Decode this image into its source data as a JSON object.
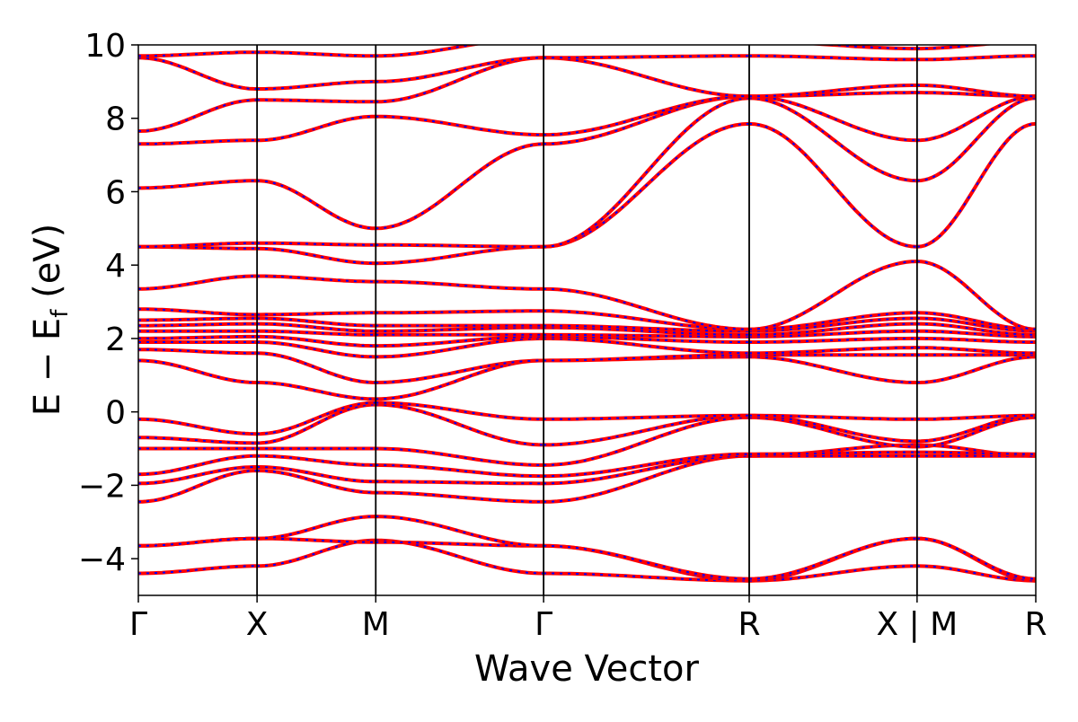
{
  "chart_data": {
    "type": "line",
    "xlabel": "Wave Vector",
    "ylabel_main": "E − E",
    "ylabel_sub": "f",
    "ylabel_unit": " (eV)",
    "ylim": [
      -5,
      10
    ],
    "y_ticks": [
      -4,
      -2,
      0,
      2,
      4,
      6,
      8,
      10
    ],
    "y_tick_labels": [
      "−4",
      "−2",
      "0",
      "2",
      "4",
      "6",
      "8",
      "10"
    ],
    "k_points": [
      {
        "label": "Γ",
        "pos": 0.0
      },
      {
        "label": "X",
        "pos": 0.5
      },
      {
        "label": "M",
        "pos": 1.0
      },
      {
        "label": "Γ",
        "pos": 1.707
      },
      {
        "label": "R",
        "pos": 2.573
      },
      {
        "label": "X | M",
        "pos": 3.28
      },
      {
        "label": "R",
        "pos": 3.78
      }
    ],
    "segment_break_after": 5,
    "grid": false,
    "series_colors": {
      "spin_up": "#ff0000",
      "spin_down": "#0000ff"
    },
    "bands": [
      {
        "energies": [
          -4.4,
          -4.2,
          -3.5,
          -4.4,
          -4.6,
          -4.2,
          -4.6
        ]
      },
      {
        "energies": [
          -3.65,
          -3.45,
          -3.55,
          -3.65,
          -4.6,
          -3.45,
          -4.6
        ]
      },
      {
        "energies": [
          -3.65,
          -3.45,
          -2.85,
          -3.65,
          -4.55,
          -3.45,
          -4.55
        ]
      },
      {
        "energies": [
          -2.45,
          -1.6,
          -2.2,
          -2.45,
          -1.2,
          -1.2,
          -1.2
        ]
      },
      {
        "energies": [
          -1.95,
          -1.5,
          -1.9,
          -1.95,
          -1.2,
          -0.9,
          -1.2
        ]
      },
      {
        "energies": [
          -1.7,
          -1.2,
          -1.45,
          -1.75,
          -1.15,
          -1.1,
          -1.15
        ]
      },
      {
        "energies": [
          -1.0,
          -1.0,
          -1.0,
          -1.45,
          -0.15,
          -0.95,
          -0.15
        ]
      },
      {
        "energies": [
          -0.7,
          -0.85,
          0.2,
          -0.9,
          -0.1,
          -0.8,
          -0.1
        ]
      },
      {
        "energies": [
          -0.2,
          -0.6,
          0.25,
          -0.2,
          -0.1,
          -0.2,
          -0.1
        ]
      },
      {
        "energies": [
          1.4,
          0.8,
          0.35,
          1.4,
          1.5,
          0.8,
          1.5
        ]
      },
      {
        "energies": [
          1.7,
          1.6,
          0.8,
          1.4,
          1.55,
          1.55,
          1.55
        ]
      },
      {
        "energies": [
          1.9,
          1.9,
          1.5,
          2.0,
          1.6,
          1.75,
          1.6
        ]
      },
      {
        "energies": [
          2.0,
          2.05,
          1.8,
          2.05,
          1.9,
          2.0,
          1.9
        ]
      },
      {
        "energies": [
          2.2,
          2.2,
          2.1,
          2.1,
          2.05,
          2.2,
          2.05
        ]
      },
      {
        "energies": [
          2.35,
          2.4,
          2.2,
          2.3,
          2.1,
          2.4,
          2.1
        ]
      },
      {
        "energies": [
          2.5,
          2.55,
          2.35,
          2.35,
          2.2,
          2.55,
          2.2
        ]
      },
      {
        "energies": [
          2.8,
          2.65,
          2.7,
          2.75,
          2.25,
          2.7,
          2.25
        ]
      },
      {
        "energies": [
          3.35,
          3.7,
          3.55,
          3.35,
          2.25,
          4.1,
          2.25
        ]
      },
      {
        "energies": [
          4.5,
          4.45,
          4.05,
          4.5,
          7.85,
          4.5,
          7.85
        ]
      },
      {
        "energies": [
          4.5,
          4.6,
          4.55,
          4.5,
          8.55,
          6.3,
          8.55
        ]
      },
      {
        "energies": [
          6.1,
          6.3,
          5.0,
          7.3,
          8.6,
          7.4,
          8.6
        ]
      },
      {
        "energies": [
          7.3,
          7.4,
          8.05,
          7.55,
          8.6,
          8.7,
          8.6
        ]
      },
      {
        "energies": [
          7.65,
          8.5,
          8.45,
          9.65,
          8.6,
          8.9,
          8.6
        ]
      },
      {
        "energies": [
          9.65,
          8.8,
          9.0,
          9.65,
          9.7,
          9.6,
          9.7
        ]
      },
      {
        "energies": [
          9.7,
          9.8,
          9.7,
          10.2,
          10.1,
          9.9,
          10.1
        ]
      }
    ]
  }
}
